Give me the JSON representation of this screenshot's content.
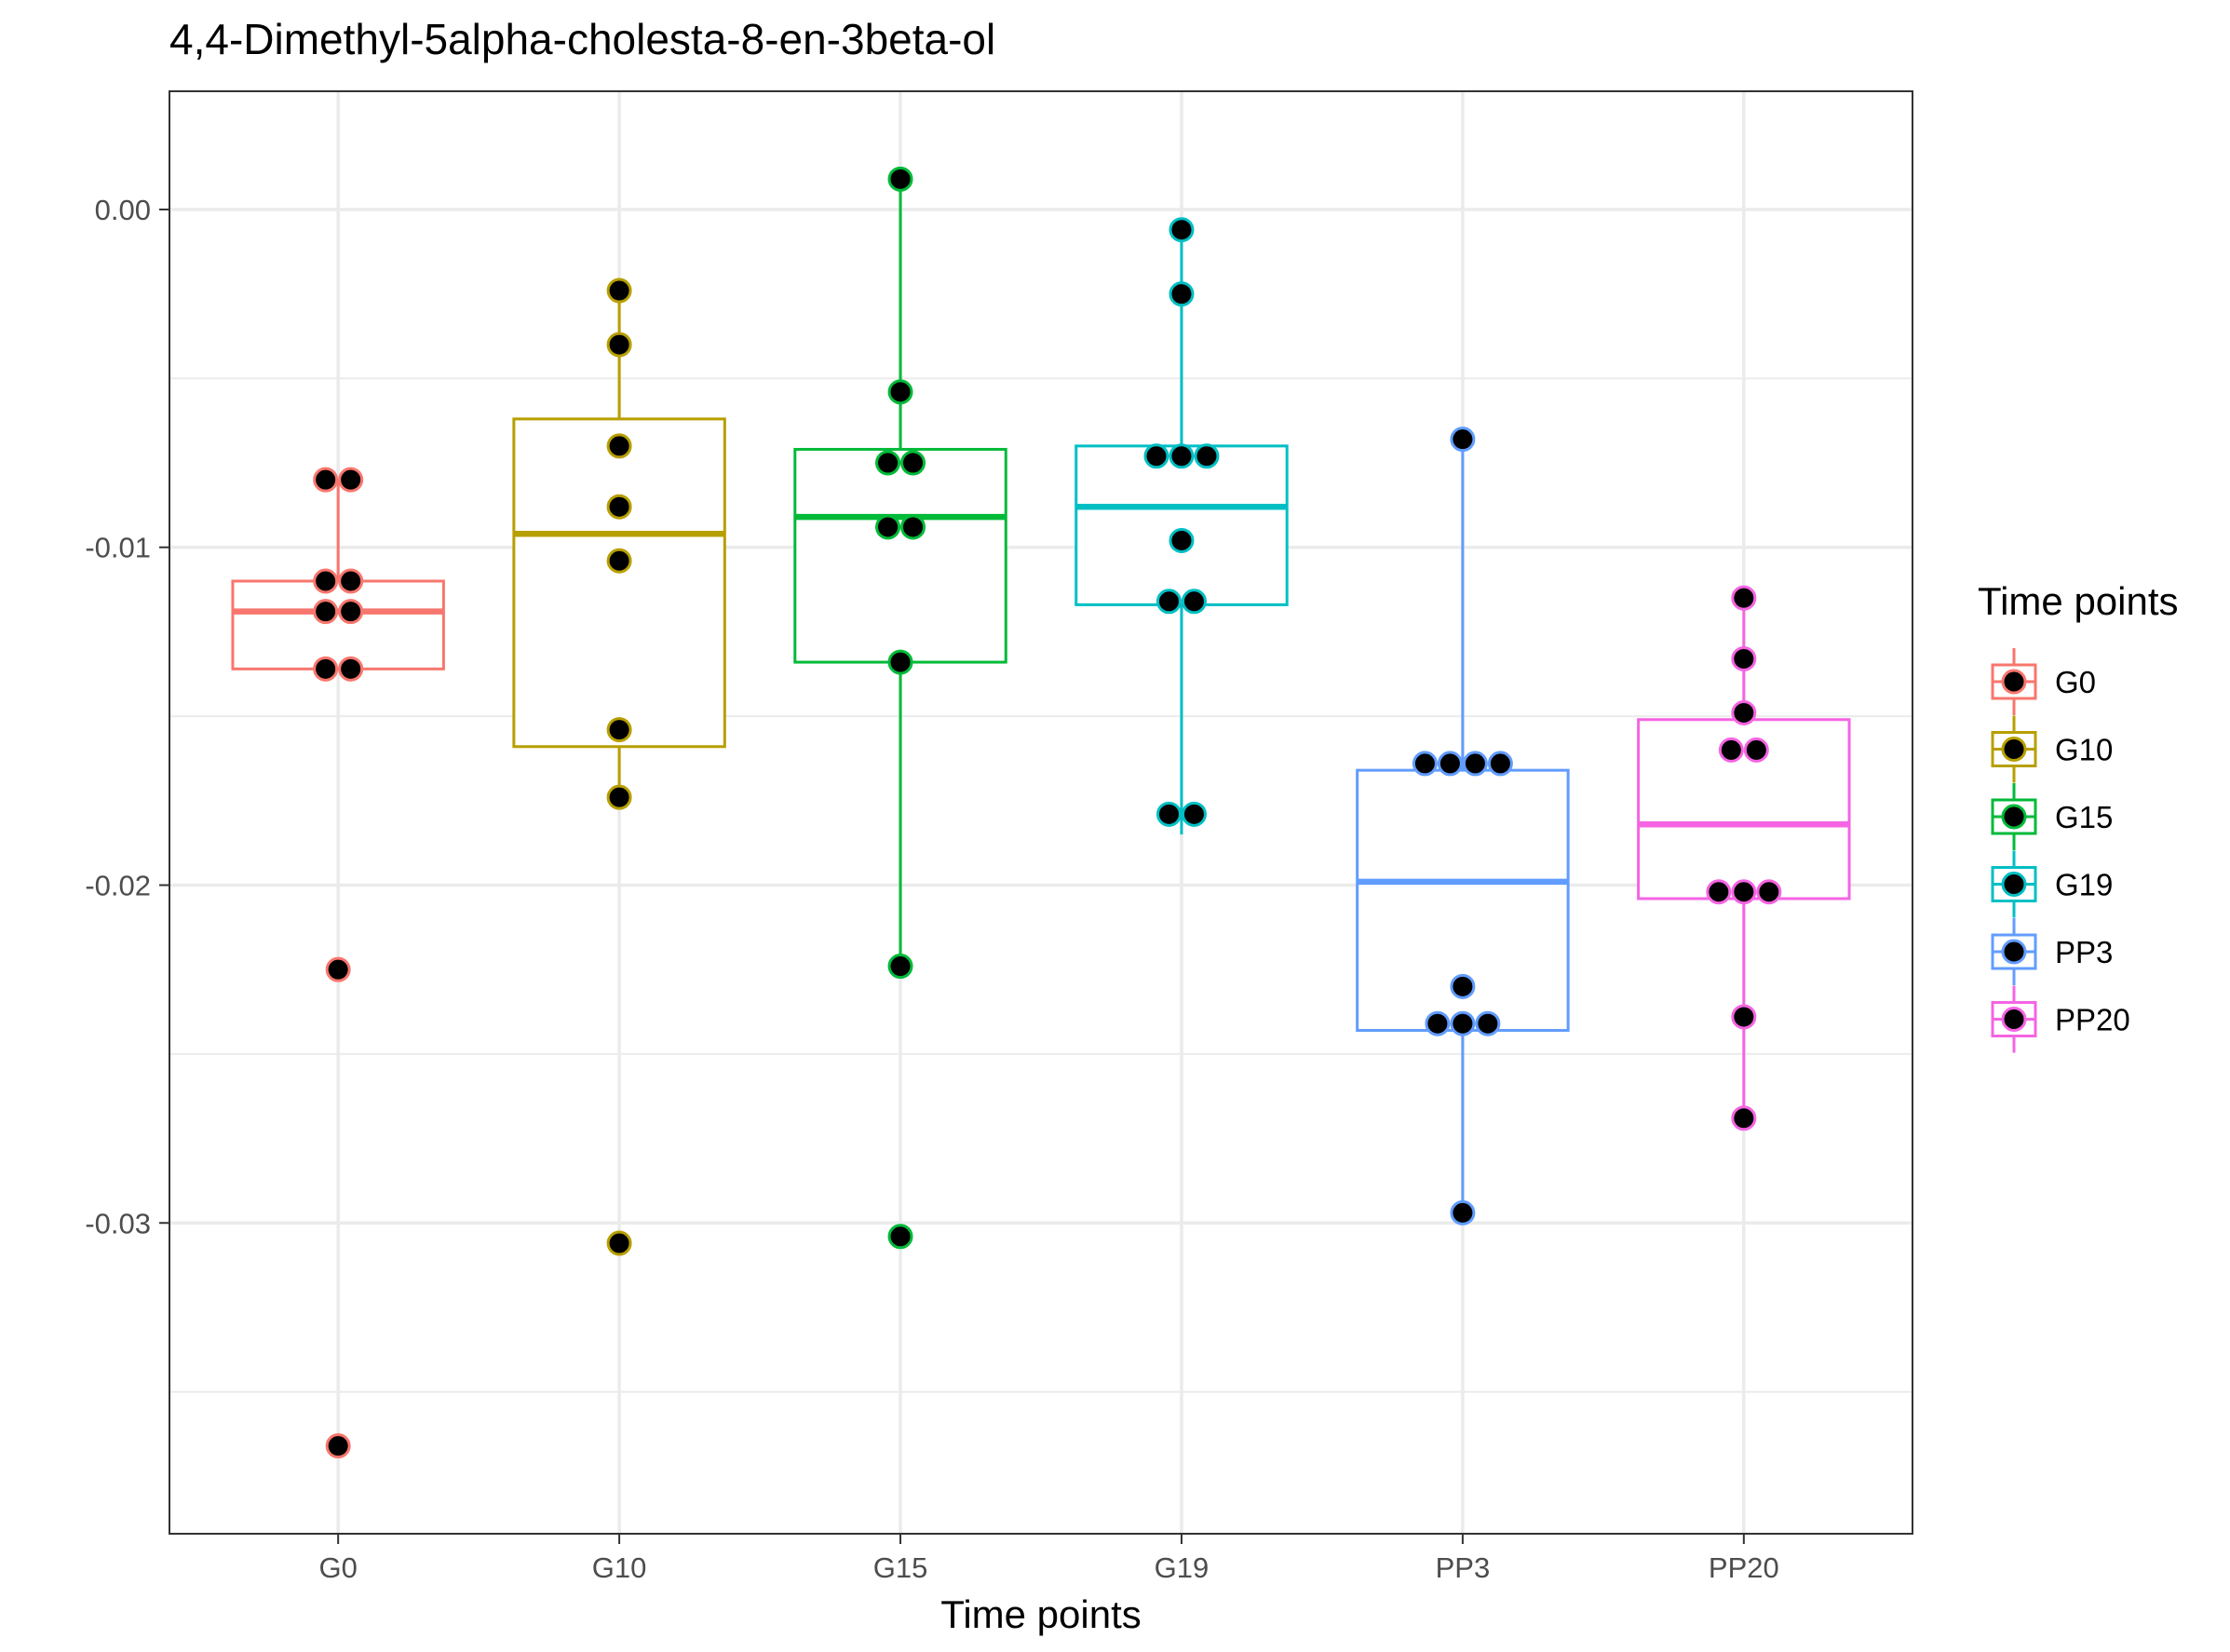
{
  "chart_data": {
    "type": "box",
    "title": "4,4-Dimethyl-5alpha-cholesta-8-en-3beta-ol",
    "xlabel": "Time points",
    "ylabel": "",
    "categories": [
      "G0",
      "G10",
      "G15",
      "G19",
      "PP3",
      "PP20"
    ],
    "ylim": [
      -0.0392,
      0.0035
    ],
    "yticks": [
      0.0,
      -0.01,
      -0.02,
      -0.03
    ],
    "ytick_labels": [
      "0.00",
      "-0.01",
      "-0.02",
      "-0.03"
    ],
    "grid": true,
    "legend": {
      "title": "Time points",
      "position": "right",
      "entries": [
        "G0",
        "G10",
        "G15",
        "G19",
        "PP3",
        "PP20"
      ]
    },
    "series": [
      {
        "name": "G0",
        "color": "#F8766D",
        "box": {
          "lower_whisker": -0.0136,
          "q1": -0.0136,
          "median": -0.0119,
          "q3": -0.011,
          "upper_whisker": -0.008
        },
        "points": [
          -0.008,
          -0.008,
          -0.011,
          -0.011,
          -0.0119,
          -0.0119,
          -0.0136,
          -0.0136,
          -0.0225,
          -0.0366
        ]
      },
      {
        "name": "G10",
        "color": "#B79F00",
        "box": {
          "lower_whisker": -0.0174,
          "q1": -0.0159,
          "median": -0.0096,
          "q3": -0.0062,
          "upper_whisker": -0.0024
        },
        "points": [
          -0.0024,
          -0.004,
          -0.007,
          -0.0088,
          -0.0104,
          -0.0154,
          -0.0174,
          -0.0306
        ]
      },
      {
        "name": "G15",
        "color": "#00BA38",
        "box": {
          "lower_whisker": -0.0224,
          "q1": -0.0134,
          "median": -0.0091,
          "q3": -0.0071,
          "upper_whisker": 0.0009
        },
        "points": [
          0.0009,
          -0.0054,
          -0.0075,
          -0.0075,
          -0.0094,
          -0.0094,
          -0.0134,
          -0.0224,
          -0.0304
        ]
      },
      {
        "name": "G19",
        "color": "#00BFC4",
        "box": {
          "lower_whisker": -0.0185,
          "q1": -0.0117,
          "median": -0.0088,
          "q3": -0.007,
          "upper_whisker": -0.0006
        },
        "points": [
          -0.0006,
          -0.0025,
          -0.0073,
          -0.0073,
          -0.0073,
          -0.0098,
          -0.0116,
          -0.0116,
          -0.0179,
          -0.0179
        ]
      },
      {
        "name": "PP3",
        "color": "#619CFF",
        "box": {
          "lower_whisker": -0.0297,
          "q1": -0.0243,
          "median": -0.0199,
          "q3": -0.0166,
          "upper_whisker": -0.0068
        },
        "points": [
          -0.0068,
          -0.0164,
          -0.0164,
          -0.0164,
          -0.0164,
          -0.023,
          -0.0241,
          -0.0241,
          -0.0241,
          -0.0297
        ]
      },
      {
        "name": "PP20",
        "color": "#F564E3",
        "box": {
          "lower_whisker": -0.0269,
          "q1": -0.0204,
          "median": -0.0182,
          "q3": -0.0151,
          "upper_whisker": -0.0115
        },
        "points": [
          -0.0115,
          -0.0133,
          -0.0149,
          -0.016,
          -0.016,
          -0.0202,
          -0.0202,
          -0.0202,
          -0.0239,
          -0.0269
        ]
      }
    ]
  }
}
